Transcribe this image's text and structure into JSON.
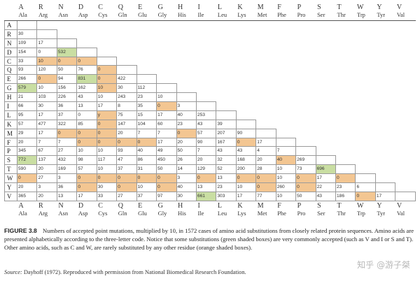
{
  "amino_acids": [
    {
      "letter": "A",
      "name": "Ala"
    },
    {
      "letter": "R",
      "name": "Arg"
    },
    {
      "letter": "N",
      "name": "Asn"
    },
    {
      "letter": "D",
      "name": "Asp"
    },
    {
      "letter": "C",
      "name": "Cys"
    },
    {
      "letter": "Q",
      "name": "Gln"
    },
    {
      "letter": "E",
      "name": "Glu"
    },
    {
      "letter": "G",
      "name": "Gly"
    },
    {
      "letter": "H",
      "name": "His"
    },
    {
      "letter": "I",
      "name": "Ile"
    },
    {
      "letter": "L",
      "name": "Leu"
    },
    {
      "letter": "K",
      "name": "Lys"
    },
    {
      "letter": "M",
      "name": "Met"
    },
    {
      "letter": "F",
      "name": "Phe"
    },
    {
      "letter": "P",
      "name": "Pro"
    },
    {
      "letter": "S",
      "name": "Ser"
    },
    {
      "letter": "T",
      "name": "Thr"
    },
    {
      "letter": "W",
      "name": "Trp"
    },
    {
      "letter": "Y",
      "name": "Tyr"
    },
    {
      "letter": "V",
      "name": "Val"
    }
  ],
  "rows": [
    [],
    [
      "30"
    ],
    [
      "109",
      "17"
    ],
    [
      "154",
      "0",
      "532"
    ],
    [
      "33",
      "10",
      "0",
      "0"
    ],
    [
      "93",
      "120",
      "50",
      "76",
      "0"
    ],
    [
      "266",
      "0",
      "94",
      "831",
      "0",
      "422"
    ],
    [
      "579",
      "10",
      "156",
      "162",
      "10",
      "30",
      "112"
    ],
    [
      "21",
      "103",
      "226",
      "43",
      "10",
      "243",
      "23",
      "10"
    ],
    [
      "66",
      "30",
      "36",
      "13",
      "17",
      "8",
      "35",
      "0",
      "3"
    ],
    [
      "95",
      "17",
      "37",
      "0",
      "y",
      "75",
      "15",
      "17",
      "40",
      "253"
    ],
    [
      "57",
      "477",
      "322",
      "85",
      "0",
      "147",
      "104",
      "60",
      "23",
      "43",
      "39"
    ],
    [
      "29",
      "17",
      "0",
      "0",
      "0",
      "20",
      "7",
      "7",
      "0",
      "57",
      "207",
      "90"
    ],
    [
      "20",
      "7",
      "7",
      "0",
      "0",
      "0",
      "0",
      "17",
      "20",
      "90",
      "167",
      "0",
      "17"
    ],
    [
      "345",
      "67",
      "27",
      "10",
      "10",
      "93",
      "40",
      "49",
      "50",
      "7",
      "43",
      "43",
      "4",
      "7"
    ],
    [
      "772",
      "137",
      "432",
      "98",
      "117",
      "47",
      "86",
      "450",
      "26",
      "20",
      "32",
      "168",
      "20",
      "40",
      "269"
    ],
    [
      "590",
      "20",
      "169",
      "57",
      "10",
      "37",
      "31",
      "50",
      "14",
      "129",
      "52",
      "200",
      "28",
      "10",
      "73",
      "696"
    ],
    [
      "0",
      "27",
      "3",
      "0",
      "0",
      "0",
      "0",
      "0",
      "3",
      "0",
      "13",
      "0",
      "0",
      "10",
      "0",
      "17",
      "0"
    ],
    [
      "20",
      "3",
      "36",
      "0",
      "30",
      "0",
      "10",
      "0",
      "40",
      "13",
      "23",
      "10",
      "0",
      "260",
      "0",
      "22",
      "23",
      "6"
    ],
    [
      "365",
      "20",
      "13",
      "17",
      "33",
      "27",
      "37",
      "97",
      "30",
      "661",
      "303",
      "17",
      "77",
      "10",
      "50",
      "43",
      "186",
      "0",
      "17"
    ]
  ],
  "highlights": {
    "green": [
      [
        7,
        0
      ],
      [
        3,
        2
      ],
      [
        6,
        3
      ],
      [
        15,
        0
      ],
      [
        16,
        15
      ],
      [
        19,
        9
      ]
    ],
    "orange": [
      [
        4,
        1
      ],
      [
        4,
        2
      ],
      [
        4,
        3
      ],
      [
        5,
        4
      ],
      [
        6,
        1
      ],
      [
        6,
        4
      ],
      [
        7,
        4
      ],
      [
        9,
        7
      ],
      [
        10,
        4
      ],
      [
        11,
        4
      ],
      [
        12,
        2
      ],
      [
        12,
        3
      ],
      [
        12,
        4
      ],
      [
        12,
        8
      ],
      [
        13,
        3
      ],
      [
        13,
        4
      ],
      [
        13,
        5
      ],
      [
        13,
        6
      ],
      [
        13,
        11
      ],
      [
        15,
        13
      ],
      [
        17,
        0
      ],
      [
        17,
        3
      ],
      [
        17,
        4
      ],
      [
        17,
        5
      ],
      [
        17,
        6
      ],
      [
        17,
        7
      ],
      [
        17,
        9
      ],
      [
        17,
        11
      ],
      [
        17,
        12
      ],
      [
        17,
        14
      ],
      [
        17,
        16
      ],
      [
        18,
        3
      ],
      [
        18,
        5
      ],
      [
        18,
        7
      ],
      [
        18,
        12
      ],
      [
        18,
        14
      ],
      [
        19,
        17
      ]
    ]
  },
  "caption": {
    "figure_label": "FIGURE 3.8",
    "text": "Numbers of accepted point mutations, multiplied by 10, in 1572 cases of amino acid substitutions from closely related protein sequences. Amino acids are presented alphabetically according to the three-letter code. Notice that some substitutions (green shaded boxes) are very commonly accepted (such as V and I or S and T). Other amino acids, such as C and W, are rarely substituted by any other residue (orange shaded boxes)."
  },
  "source": {
    "label": "Source:",
    "text": "Dayhoff (1972). Reproduced with permission from National Biomedical Research Foundation."
  },
  "watermark": "知乎 @游子桀",
  "colors": {
    "green": "#c9dea2",
    "orange": "#f3c692"
  }
}
